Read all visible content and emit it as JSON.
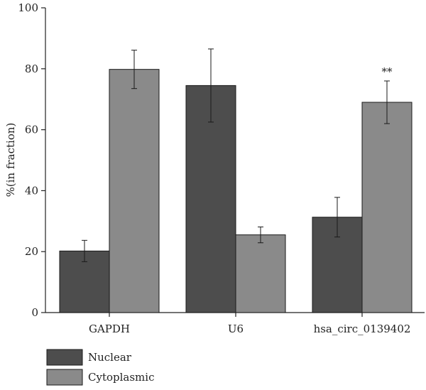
{
  "chart_data": {
    "type": "bar",
    "ylabel": "%(in fraction)",
    "xlabel": "",
    "ylim": [
      0,
      100
    ],
    "yticks": [
      0,
      20,
      40,
      60,
      80,
      100
    ],
    "categories": [
      "GAPDH",
      "U6",
      "hsa_circ_0139402"
    ],
    "series": [
      {
        "name": "Nuclear",
        "color": "#4d4d4d",
        "values": [
          20.2,
          74.5,
          31.3
        ],
        "errors": [
          3.5,
          12.0,
          6.5
        ]
      },
      {
        "name": "Cytoplasmic",
        "color": "#8a8a8a",
        "values": [
          79.8,
          25.5,
          69.0
        ],
        "errors": [
          6.3,
          2.6,
          7.0
        ]
      }
    ],
    "annotations": [
      {
        "category": "hsa_circ_0139402",
        "series": "Cytoplasmic",
        "text": "**"
      }
    ],
    "legend_position": "bottom-left",
    "grid": false
  }
}
